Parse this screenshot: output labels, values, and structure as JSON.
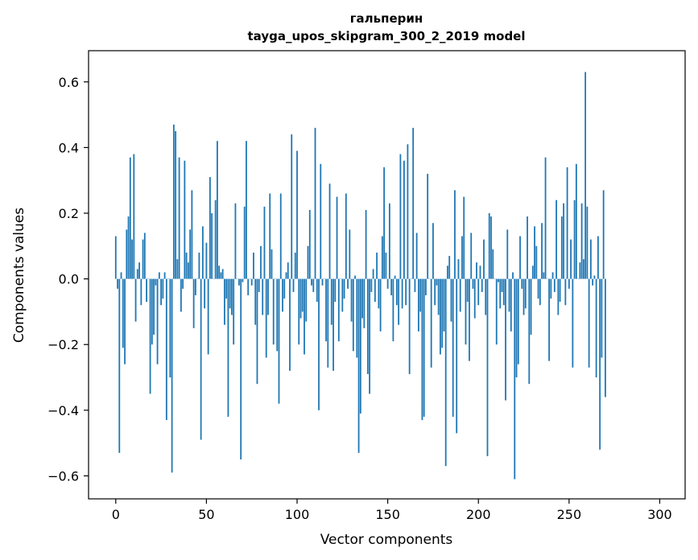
{
  "chart_data": {
    "type": "bar",
    "title": "гальперин",
    "subtitle": "tayga_upos_skipgram_300_2_2019 model",
    "xlabel": "Vector components",
    "ylabel": "Components values",
    "xlim": [
      -15,
      314
    ],
    "ylim": [
      -0.67,
      0.695
    ],
    "xticks": [
      0,
      50,
      100,
      150,
      200,
      250,
      300
    ],
    "xtick_labels": [
      "0",
      "50",
      "100",
      "150",
      "200",
      "250",
      "300"
    ],
    "yticks": [
      -0.6,
      -0.4,
      -0.2,
      0.0,
      0.2,
      0.4,
      0.6
    ],
    "ytick_labels": [
      "−0.6",
      "−0.4",
      "−0.2",
      "0.0",
      "0.2",
      "0.4",
      "0.6"
    ],
    "bar_color": "#1f77b4",
    "grid": false,
    "values": [
      0.13,
      -0.03,
      -0.53,
      0.02,
      -0.21,
      -0.26,
      0.15,
      0.19,
      0.37,
      0.12,
      0.38,
      -0.13,
      0.03,
      0.05,
      -0.08,
      0.12,
      0.14,
      -0.07,
      0.0,
      -0.35,
      -0.2,
      -0.17,
      -0.02,
      -0.26,
      0.02,
      -0.08,
      -0.06,
      0.02,
      -0.43,
      0.0,
      -0.3,
      -0.59,
      0.47,
      0.45,
      0.06,
      0.37,
      -0.1,
      -0.03,
      0.36,
      0.08,
      0.05,
      0.15,
      0.27,
      -0.15,
      -0.05,
      0.0,
      0.08,
      -0.49,
      0.16,
      -0.09,
      0.11,
      -0.23,
      0.31,
      0.2,
      0.0,
      0.24,
      0.42,
      0.04,
      0.02,
      0.03,
      -0.14,
      -0.06,
      -0.42,
      -0.09,
      -0.11,
      -0.2,
      0.23,
      0.0,
      -0.02,
      -0.55,
      -0.01,
      0.22,
      0.42,
      -0.05,
      0.0,
      -0.02,
      0.08,
      -0.14,
      -0.32,
      -0.04,
      0.1,
      -0.11,
      0.22,
      -0.24,
      -0.11,
      0.26,
      0.09,
      -0.2,
      0.0,
      -0.22,
      -0.38,
      0.26,
      -0.1,
      -0.06,
      0.02,
      0.05,
      -0.28,
      0.44,
      -0.04,
      0.08,
      0.39,
      -0.2,
      -0.12,
      -0.1,
      -0.23,
      -0.13,
      0.1,
      0.21,
      -0.02,
      -0.04,
      0.46,
      -0.07,
      -0.4,
      0.35,
      -0.02,
      0.0,
      -0.19,
      -0.27,
      0.29,
      -0.14,
      -0.28,
      -0.07,
      0.25,
      -0.19,
      0.0,
      -0.1,
      -0.06,
      0.26,
      -0.03,
      0.15,
      -0.13,
      -0.22,
      0.01,
      -0.24,
      -0.53,
      -0.41,
      -0.12,
      -0.15,
      0.21,
      -0.29,
      -0.35,
      -0.04,
      0.03,
      -0.07,
      0.08,
      -0.09,
      -0.16,
      0.13,
      0.34,
      0.08,
      -0.03,
      0.23,
      -0.05,
      -0.19,
      0.01,
      -0.08,
      -0.14,
      0.38,
      -0.09,
      0.36,
      -0.08,
      0.41,
      -0.29,
      0.0,
      0.46,
      -0.04,
      0.14,
      -0.16,
      -0.1,
      -0.43,
      -0.42,
      -0.05,
      0.32,
      0.0,
      -0.27,
      0.17,
      -0.08,
      -0.02,
      -0.11,
      -0.23,
      -0.21,
      -0.16,
      -0.57,
      0.04,
      0.07,
      -0.13,
      -0.42,
      0.27,
      -0.47,
      0.06,
      -0.1,
      0.13,
      0.25,
      -0.2,
      -0.07,
      -0.25,
      0.14,
      -0.03,
      -0.12,
      0.05,
      -0.08,
      0.04,
      -0.04,
      0.12,
      -0.11,
      -0.54,
      0.2,
      0.19,
      0.09,
      0.0,
      -0.2,
      -0.01,
      -0.09,
      -0.04,
      -0.08,
      -0.37,
      0.15,
      -0.1,
      -0.16,
      0.02,
      -0.61,
      -0.3,
      -0.26,
      0.13,
      -0.03,
      -0.11,
      -0.09,
      0.19,
      -0.32,
      -0.17,
      0.04,
      0.16,
      0.1,
      -0.06,
      -0.08,
      0.17,
      0.02,
      0.37,
      0.0,
      -0.25,
      -0.06,
      0.02,
      -0.04,
      0.24,
      -0.11,
      -0.07,
      0.19,
      0.23,
      -0.08,
      0.34,
      -0.03,
      0.12,
      -0.27,
      0.24,
      0.35,
      0.0,
      0.05,
      0.23,
      0.06,
      0.63,
      0.22,
      -0.27,
      0.12,
      -0.02,
      0.01,
      -0.3,
      0.13,
      -0.52,
      -0.24,
      0.27,
      -0.36
    ]
  }
}
